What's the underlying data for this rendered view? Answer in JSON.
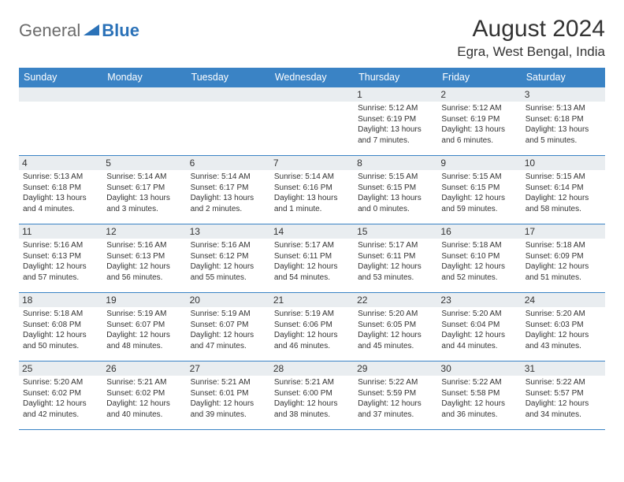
{
  "logo": {
    "text1": "General",
    "text2": "Blue",
    "gray": "#6b6b6b",
    "blue": "#2b72b8"
  },
  "title": "August 2024",
  "location": "Egra, West Bengal, India",
  "colors": {
    "header_bg": "#3a83c5",
    "header_text": "#ffffff",
    "week_border": "#3a83c5",
    "daynum_bg": "#e9edf0",
    "text": "#333333"
  },
  "day_headers": [
    "Sunday",
    "Monday",
    "Tuesday",
    "Wednesday",
    "Thursday",
    "Friday",
    "Saturday"
  ],
  "weeks": [
    [
      {
        "empty": true
      },
      {
        "empty": true
      },
      {
        "empty": true
      },
      {
        "empty": true
      },
      {
        "day": "1",
        "sunrise": "5:12 AM",
        "sunset": "6:19 PM",
        "daylight": "13 hours and 7 minutes."
      },
      {
        "day": "2",
        "sunrise": "5:12 AM",
        "sunset": "6:19 PM",
        "daylight": "13 hours and 6 minutes."
      },
      {
        "day": "3",
        "sunrise": "5:13 AM",
        "sunset": "6:18 PM",
        "daylight": "13 hours and 5 minutes."
      }
    ],
    [
      {
        "day": "4",
        "sunrise": "5:13 AM",
        "sunset": "6:18 PM",
        "daylight": "13 hours and 4 minutes."
      },
      {
        "day": "5",
        "sunrise": "5:14 AM",
        "sunset": "6:17 PM",
        "daylight": "13 hours and 3 minutes."
      },
      {
        "day": "6",
        "sunrise": "5:14 AM",
        "sunset": "6:17 PM",
        "daylight": "13 hours and 2 minutes."
      },
      {
        "day": "7",
        "sunrise": "5:14 AM",
        "sunset": "6:16 PM",
        "daylight": "13 hours and 1 minute."
      },
      {
        "day": "8",
        "sunrise": "5:15 AM",
        "sunset": "6:15 PM",
        "daylight": "13 hours and 0 minutes."
      },
      {
        "day": "9",
        "sunrise": "5:15 AM",
        "sunset": "6:15 PM",
        "daylight": "12 hours and 59 minutes."
      },
      {
        "day": "10",
        "sunrise": "5:15 AM",
        "sunset": "6:14 PM",
        "daylight": "12 hours and 58 minutes."
      }
    ],
    [
      {
        "day": "11",
        "sunrise": "5:16 AM",
        "sunset": "6:13 PM",
        "daylight": "12 hours and 57 minutes."
      },
      {
        "day": "12",
        "sunrise": "5:16 AM",
        "sunset": "6:13 PM",
        "daylight": "12 hours and 56 minutes."
      },
      {
        "day": "13",
        "sunrise": "5:16 AM",
        "sunset": "6:12 PM",
        "daylight": "12 hours and 55 minutes."
      },
      {
        "day": "14",
        "sunrise": "5:17 AM",
        "sunset": "6:11 PM",
        "daylight": "12 hours and 54 minutes."
      },
      {
        "day": "15",
        "sunrise": "5:17 AM",
        "sunset": "6:11 PM",
        "daylight": "12 hours and 53 minutes."
      },
      {
        "day": "16",
        "sunrise": "5:18 AM",
        "sunset": "6:10 PM",
        "daylight": "12 hours and 52 minutes."
      },
      {
        "day": "17",
        "sunrise": "5:18 AM",
        "sunset": "6:09 PM",
        "daylight": "12 hours and 51 minutes."
      }
    ],
    [
      {
        "day": "18",
        "sunrise": "5:18 AM",
        "sunset": "6:08 PM",
        "daylight": "12 hours and 50 minutes."
      },
      {
        "day": "19",
        "sunrise": "5:19 AM",
        "sunset": "6:07 PM",
        "daylight": "12 hours and 48 minutes."
      },
      {
        "day": "20",
        "sunrise": "5:19 AM",
        "sunset": "6:07 PM",
        "daylight": "12 hours and 47 minutes."
      },
      {
        "day": "21",
        "sunrise": "5:19 AM",
        "sunset": "6:06 PM",
        "daylight": "12 hours and 46 minutes."
      },
      {
        "day": "22",
        "sunrise": "5:20 AM",
        "sunset": "6:05 PM",
        "daylight": "12 hours and 45 minutes."
      },
      {
        "day": "23",
        "sunrise": "5:20 AM",
        "sunset": "6:04 PM",
        "daylight": "12 hours and 44 minutes."
      },
      {
        "day": "24",
        "sunrise": "5:20 AM",
        "sunset": "6:03 PM",
        "daylight": "12 hours and 43 minutes."
      }
    ],
    [
      {
        "day": "25",
        "sunrise": "5:20 AM",
        "sunset": "6:02 PM",
        "daylight": "12 hours and 42 minutes."
      },
      {
        "day": "26",
        "sunrise": "5:21 AM",
        "sunset": "6:02 PM",
        "daylight": "12 hours and 40 minutes."
      },
      {
        "day": "27",
        "sunrise": "5:21 AM",
        "sunset": "6:01 PM",
        "daylight": "12 hours and 39 minutes."
      },
      {
        "day": "28",
        "sunrise": "5:21 AM",
        "sunset": "6:00 PM",
        "daylight": "12 hours and 38 minutes."
      },
      {
        "day": "29",
        "sunrise": "5:22 AM",
        "sunset": "5:59 PM",
        "daylight": "12 hours and 37 minutes."
      },
      {
        "day": "30",
        "sunrise": "5:22 AM",
        "sunset": "5:58 PM",
        "daylight": "12 hours and 36 minutes."
      },
      {
        "day": "31",
        "sunrise": "5:22 AM",
        "sunset": "5:57 PM",
        "daylight": "12 hours and 34 minutes."
      }
    ]
  ],
  "labels": {
    "sunrise": "Sunrise:",
    "sunset": "Sunset:",
    "daylight": "Daylight:"
  }
}
